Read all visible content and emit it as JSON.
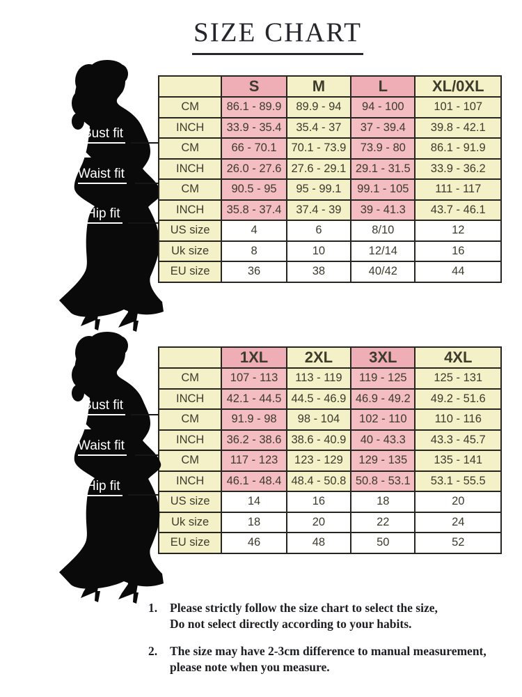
{
  "title": "SIZE CHART",
  "colors": {
    "cell_yellow": "#f4f1c9",
    "cell_pink": "#f4bdc2",
    "header_pink": "#efadb5",
    "cell_white": "#ffffff",
    "table_border": "#26251f",
    "cell_text": "#3c3b2c",
    "silhouette": "#0a0a0a"
  },
  "figure": {
    "bust_label": "Bust fit",
    "waist_label": "Waist fit",
    "hip_label": "Hip fit"
  },
  "tables": [
    {
      "header": [
        "",
        "S",
        "M",
        "L",
        "XL/0XL"
      ],
      "rows": [
        {
          "group": "bust",
          "kind": "measure",
          "label": "CM",
          "values": [
            "86.1 - 89.9",
            "89.9 - 94",
            "94 - 100",
            "101 - 107"
          ]
        },
        {
          "group": "bust",
          "kind": "measure",
          "label": "INCH",
          "values": [
            "33.9 - 35.4",
            "35.4 - 37",
            "37 - 39.4",
            "39.8 - 42.1"
          ]
        },
        {
          "group": "waist",
          "kind": "measure",
          "label": "CM",
          "values": [
            "66 - 70.1",
            "70.1 - 73.9",
            "73.9 - 80",
            "86.1 - 91.9"
          ]
        },
        {
          "group": "waist",
          "kind": "measure",
          "label": "INCH",
          "values": [
            "26.0 - 27.6",
            "27.6 - 29.1",
            "29.1 - 31.5",
            "33.9 - 36.2"
          ]
        },
        {
          "group": "hip",
          "kind": "measure",
          "label": "CM",
          "values": [
            "90.5 - 95",
            "95 - 99.1",
            "99.1 - 105",
            "111 - 117"
          ]
        },
        {
          "group": "hip",
          "kind": "measure",
          "label": "INCH",
          "values": [
            "35.8 - 37.4",
            "37.4 - 39",
            "39 - 41.3",
            "43.7 - 46.1"
          ]
        },
        {
          "group": "conversion",
          "kind": "size",
          "label": "US size",
          "values": [
            "4",
            "6",
            "8/10",
            "12"
          ]
        },
        {
          "group": "conversion",
          "kind": "size",
          "label": "Uk size",
          "values": [
            "8",
            "10",
            "12/14",
            "16"
          ]
        },
        {
          "group": "conversion",
          "kind": "size",
          "label": "EU size",
          "values": [
            "36",
            "38",
            "40/42",
            "44"
          ]
        }
      ]
    },
    {
      "header": [
        "",
        "1XL",
        "2XL",
        "3XL",
        "4XL"
      ],
      "rows": [
        {
          "group": "bust",
          "kind": "measure",
          "label": "CM",
          "values": [
            "107 - 113",
            "113 - 119",
            "119 - 125",
            "125 - 131"
          ]
        },
        {
          "group": "bust",
          "kind": "measure",
          "label": "INCH",
          "values": [
            "42.1 - 44.5",
            "44.5 - 46.9",
            "46.9 - 49.2",
            "49.2 - 51.6"
          ]
        },
        {
          "group": "waist",
          "kind": "measure",
          "label": "CM",
          "values": [
            "91.9 - 98",
            "98 - 104",
            "102 - 110",
            "110 - 116"
          ]
        },
        {
          "group": "waist",
          "kind": "measure",
          "label": "INCH",
          "values": [
            "36.2 - 38.6",
            "38.6 - 40.9",
            "40 - 43.3",
            "43.3 - 45.7"
          ]
        },
        {
          "group": "hip",
          "kind": "measure",
          "label": "CM",
          "values": [
            "117 - 123",
            "123 - 129",
            "129 - 135",
            "135 - 141"
          ]
        },
        {
          "group": "hip",
          "kind": "measure",
          "label": "INCH",
          "values": [
            "46.1 - 48.4",
            "48.4 - 50.8",
            "50.8 - 53.1",
            "53.1 - 55.5"
          ]
        },
        {
          "group": "conversion",
          "kind": "size",
          "label": "US size",
          "values": [
            "14",
            "16",
            "18",
            "20"
          ]
        },
        {
          "group": "conversion",
          "kind": "size",
          "label": "Uk size",
          "values": [
            "18",
            "20",
            "22",
            "24"
          ]
        },
        {
          "group": "conversion",
          "kind": "size",
          "label": "EU size",
          "values": [
            "46",
            "48",
            "50",
            "52"
          ]
        }
      ]
    }
  ],
  "notes": [
    {
      "number": "1.",
      "lines": [
        "Please strictly follow the size chart to select the size,",
        "Do not select directly according to your habits."
      ]
    },
    {
      "number": "2.",
      "lines": [
        "The size may have 2-3cm difference  to manual measurement,",
        "please note when you measure."
      ]
    }
  ]
}
